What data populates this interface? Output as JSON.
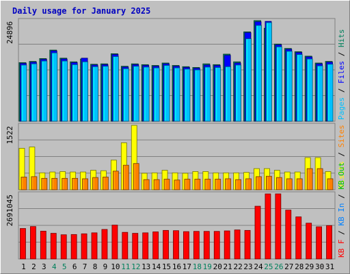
{
  "chart_data": [
    {
      "type": "bar",
      "title": "Daily usage for January 2025",
      "categories": [
        "1",
        "2",
        "3",
        "4",
        "5",
        "6",
        "7",
        "8",
        "9",
        "10",
        "11",
        "12",
        "13",
        "14",
        "15",
        "16",
        "17",
        "18",
        "19",
        "20",
        "21",
        "22",
        "23",
        "24",
        "25",
        "26",
        "27",
        "28",
        "29",
        "30",
        "31"
      ],
      "weekend_days": [
        "4",
        "5",
        "11",
        "12",
        "18",
        "19",
        "25",
        "26"
      ],
      "ymax_label": "24896",
      "ylim": [
        0,
        24896
      ],
      "legend": [
        "Pages",
        "Files",
        "Hits"
      ],
      "colors": {
        "Hits": "#00805c",
        "Files": "#0000ff",
        "Pages": "#00c0ff"
      },
      "series": [
        {
          "name": "Hits",
          "values": [
            14500,
            14800,
            15500,
            17600,
            15600,
            14700,
            15400,
            14100,
            14200,
            16700,
            13600,
            14200,
            14000,
            13800,
            14400,
            13800,
            13500,
            13300,
            14200,
            14000,
            16600,
            14700,
            22100,
            24896,
            23000,
            19100,
            18000,
            17200,
            16100,
            14400,
            14800
          ]
        },
        {
          "name": "Files",
          "values": [
            14300,
            14600,
            15300,
            17400,
            15400,
            14500,
            15600,
            13900,
            14000,
            16500,
            13400,
            14000,
            13800,
            13600,
            14200,
            13600,
            13300,
            13100,
            13900,
            13800,
            16300,
            14400,
            21900,
            24600,
            24700,
            18900,
            17800,
            17000,
            15900,
            14200,
            14600
          ]
        },
        {
          "name": "Pages",
          "values": [
            13900,
            14200,
            14900,
            16900,
            14900,
            14000,
            14700,
            13500,
            13600,
            16000,
            13000,
            13600,
            13400,
            13200,
            13800,
            13200,
            12900,
            12700,
            13400,
            13300,
            13500,
            13900,
            20400,
            23700,
            24400,
            18400,
            17300,
            16500,
            15400,
            13700,
            14100
          ]
        }
      ]
    },
    {
      "type": "bar",
      "ymax_label": "1522",
      "ylim": [
        0,
        1522
      ],
      "legend": [
        "Visits",
        "Sites"
      ],
      "colors": {
        "Visits": "#ffff00",
        "Sites": "#ff8000"
      },
      "series": [
        {
          "name": "Visits",
          "values": [
            980,
            1010,
            400,
            420,
            430,
            420,
            420,
            460,
            450,
            700,
            1110,
            1522,
            390,
            400,
            460,
            400,
            390,
            430,
            430,
            400,
            400,
            400,
            410,
            500,
            500,
            460,
            420,
            420,
            760,
            760,
            430
          ]
        },
        {
          "name": "Sites",
          "values": [
            300,
            310,
            270,
            270,
            270,
            270,
            260,
            290,
            300,
            440,
            580,
            620,
            240,
            240,
            250,
            230,
            250,
            250,
            250,
            250,
            260,
            240,
            260,
            310,
            320,
            290,
            260,
            260,
            500,
            500,
            260
          ]
        }
      ]
    },
    {
      "type": "bar",
      "ymax_label": "2691045",
      "ylim": [
        0,
        2691045
      ],
      "legend": [
        "KB F",
        "KB In",
        "KB Out"
      ],
      "colors": {
        "KB F": "#ff0000",
        "KB In": "#0080ff",
        "KB Out": "#00c000"
      },
      "series": [
        {
          "name": "KB F",
          "values": [
            1260000,
            1340000,
            1150000,
            1060000,
            1000000,
            1010000,
            1040000,
            1080000,
            1220000,
            1400000,
            1100000,
            1060000,
            1080000,
            1120000,
            1180000,
            1170000,
            1130000,
            1140000,
            1140000,
            1140000,
            1160000,
            1200000,
            1180000,
            2180000,
            2690000,
            2691045,
            2020000,
            1740000,
            1480000,
            1330000,
            1380000
          ]
        }
      ]
    }
  ]
}
